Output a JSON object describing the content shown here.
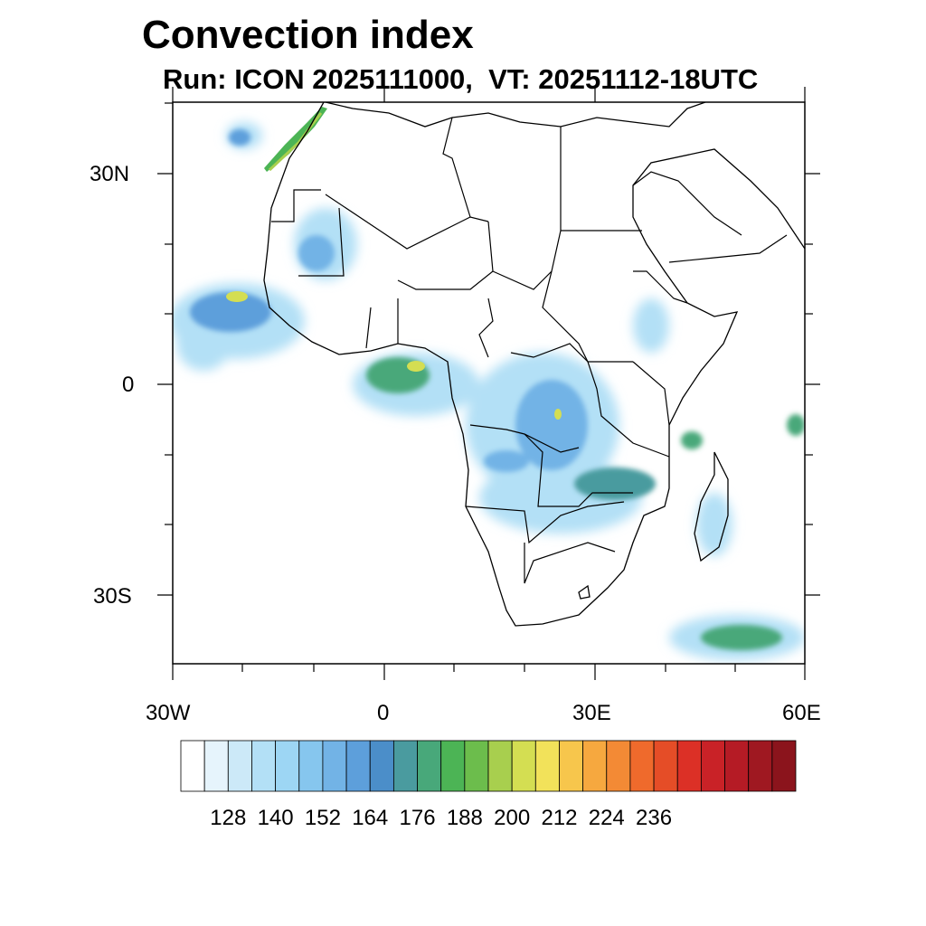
{
  "title": "Convection index",
  "subtitle": "Run: ICON 2025111000,  VT: 20251112-18UTC",
  "lat_labels": [
    "30N",
    "0",
    "30S"
  ],
  "lon_labels": [
    "30W",
    "0",
    "30E",
    "60E"
  ],
  "colorbar": {
    "colors": [
      "#ffffff",
      "#e6f4fc",
      "#cce9f8",
      "#b3e0f6",
      "#9dd6f4",
      "#86c6ee",
      "#72b3e6",
      "#5d9fdb",
      "#4b8ec9",
      "#4a9b9f",
      "#48a87a",
      "#4cb455",
      "#6cbd4c",
      "#a8cf4e",
      "#d4de52",
      "#f2e25a",
      "#f7c64c",
      "#f6a83f",
      "#f38a35",
      "#ef6a2c",
      "#e54d27",
      "#dc3026",
      "#c92227",
      "#b51b25",
      "#9f1821",
      "#8b141c"
    ],
    "tick_labels": [
      "128",
      "140",
      "152",
      "164",
      "176",
      "188",
      "200",
      "212",
      "224",
      "236"
    ]
  }
}
